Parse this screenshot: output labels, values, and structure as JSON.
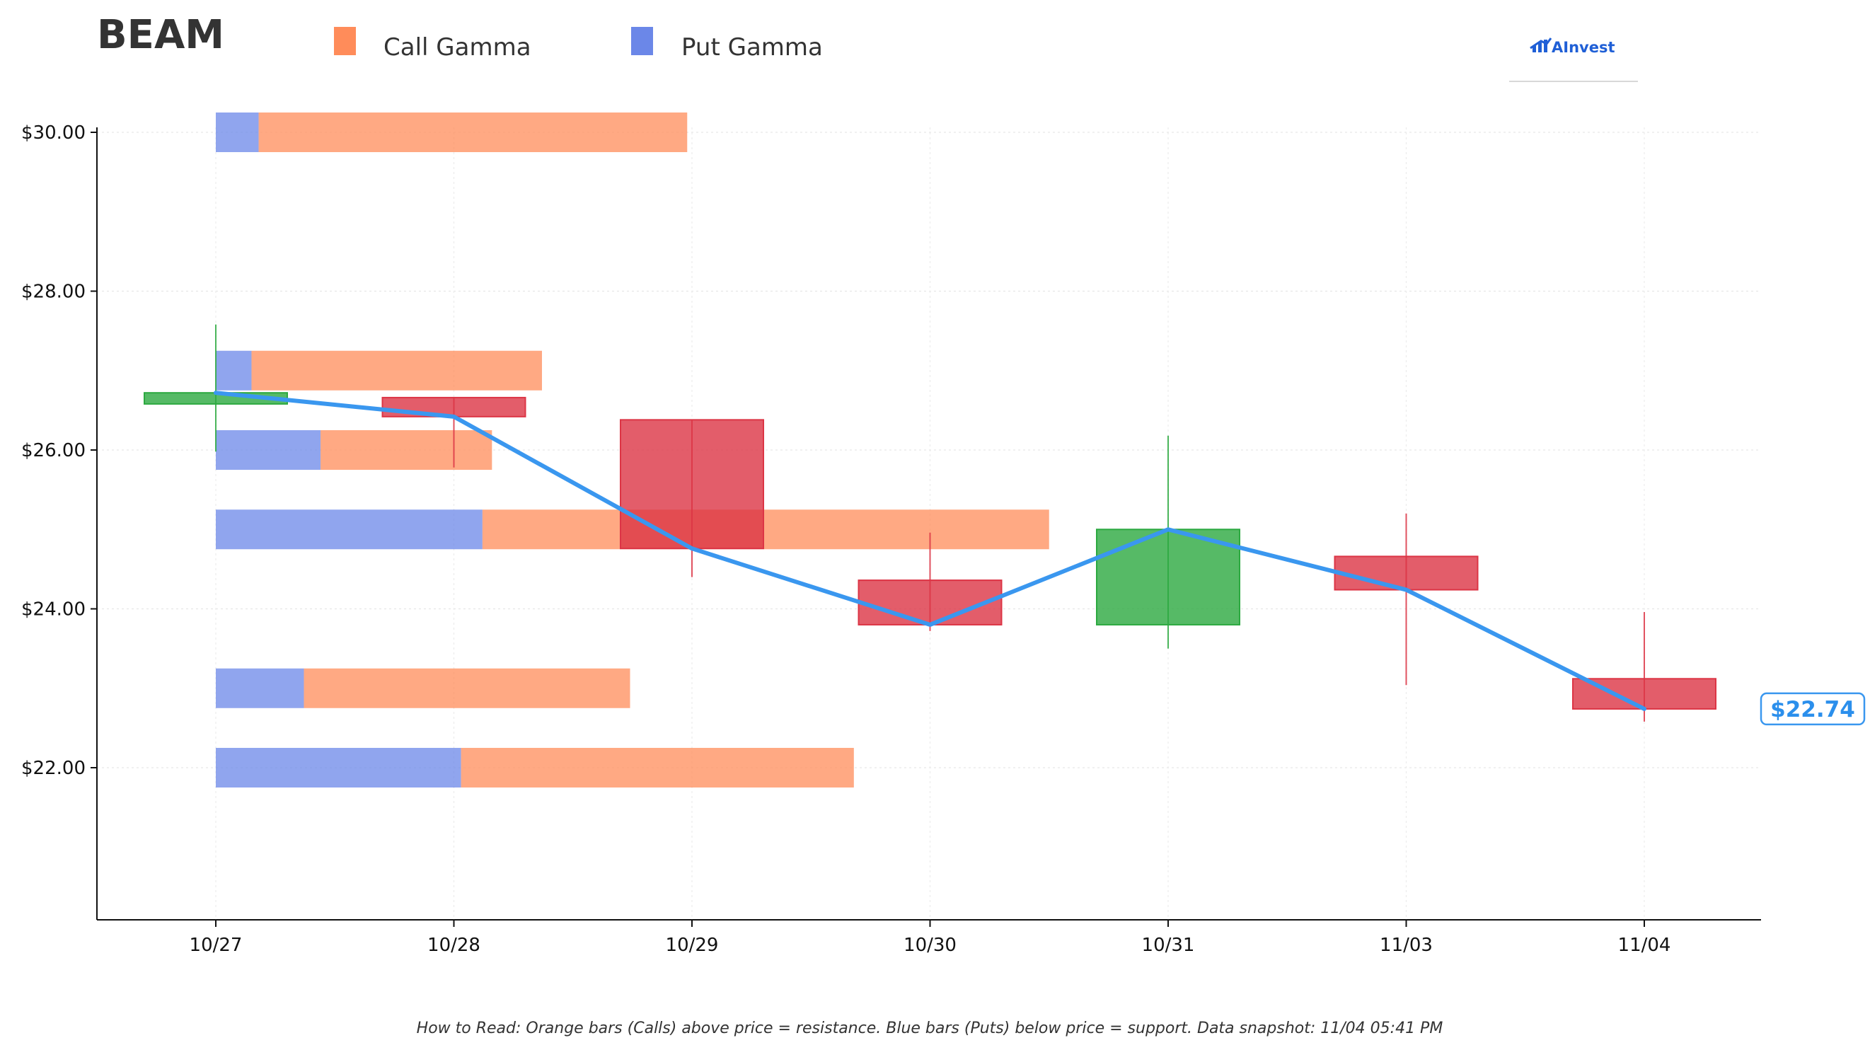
{
  "header": {
    "ticker": "BEAM",
    "logo_text": "AInvest"
  },
  "legend": [
    {
      "label": "Call Gamma",
      "color": "#ff8c5a"
    },
    {
      "label": "Put Gamma",
      "color": "#6b87e8"
    }
  ],
  "footnote": "How to Read: Orange bars (Calls) above price = resistance. Blue bars (Puts) below price = support. Data snapshot: 11/04 05:41 PM",
  "colors": {
    "call": "#ff8c5a",
    "put": "#6b87e8",
    "up": "#2ca940",
    "down": "#dc3545",
    "line": "#3a97ef"
  },
  "chart_data": {
    "type": "candlestick",
    "ylim": [
      20.0,
      30.0
    ],
    "y_ticks": [
      {
        "value": 22,
        "label": "$22.00"
      },
      {
        "value": 24,
        "label": "$24.00"
      },
      {
        "value": 26,
        "label": "$26.00"
      },
      {
        "value": 28,
        "label": "$28.00"
      },
      {
        "value": 30,
        "label": "$30.00"
      }
    ],
    "categories": [
      "10/27",
      "10/28",
      "10/29",
      "10/30",
      "10/31",
      "11/03",
      "11/04"
    ],
    "candles": [
      {
        "date": "10/27",
        "open": 26.58,
        "high": 27.58,
        "low": 25.98,
        "close": 26.72
      },
      {
        "date": "10/28",
        "open": 26.66,
        "high": 26.66,
        "low": 25.78,
        "close": 26.42
      },
      {
        "date": "10/29",
        "open": 26.38,
        "high": 26.38,
        "low": 24.4,
        "close": 24.76
      },
      {
        "date": "10/30",
        "open": 24.36,
        "high": 24.96,
        "low": 23.72,
        "close": 23.8
      },
      {
        "date": "10/31",
        "open": 23.8,
        "high": 26.18,
        "low": 23.5,
        "close": 25.0
      },
      {
        "date": "11/03",
        "open": 24.66,
        "high": 25.2,
        "low": 23.04,
        "close": 24.24
      },
      {
        "date": "11/04",
        "open": 23.12,
        "high": 23.96,
        "low": 22.58,
        "close": 22.74
      }
    ],
    "close_line": [
      26.72,
      26.42,
      24.76,
      23.8,
      25.0,
      24.24,
      22.74
    ],
    "gamma_bars": [
      {
        "strike": 30.0,
        "put_gamma": 0.18,
        "call_gamma": 1.8
      },
      {
        "strike": 27.0,
        "put_gamma": 0.15,
        "call_gamma": 1.22
      },
      {
        "strike": 26.0,
        "put_gamma": 0.44,
        "call_gamma": 0.72
      },
      {
        "strike": 25.0,
        "put_gamma": 1.12,
        "call_gamma": 2.38
      },
      {
        "strike": 23.0,
        "put_gamma": 0.37,
        "call_gamma": 1.37
      },
      {
        "strike": 22.0,
        "put_gamma": 1.03,
        "call_gamma": 1.65
      }
    ],
    "current_price": 22.74,
    "current_price_label": "$22.74"
  }
}
